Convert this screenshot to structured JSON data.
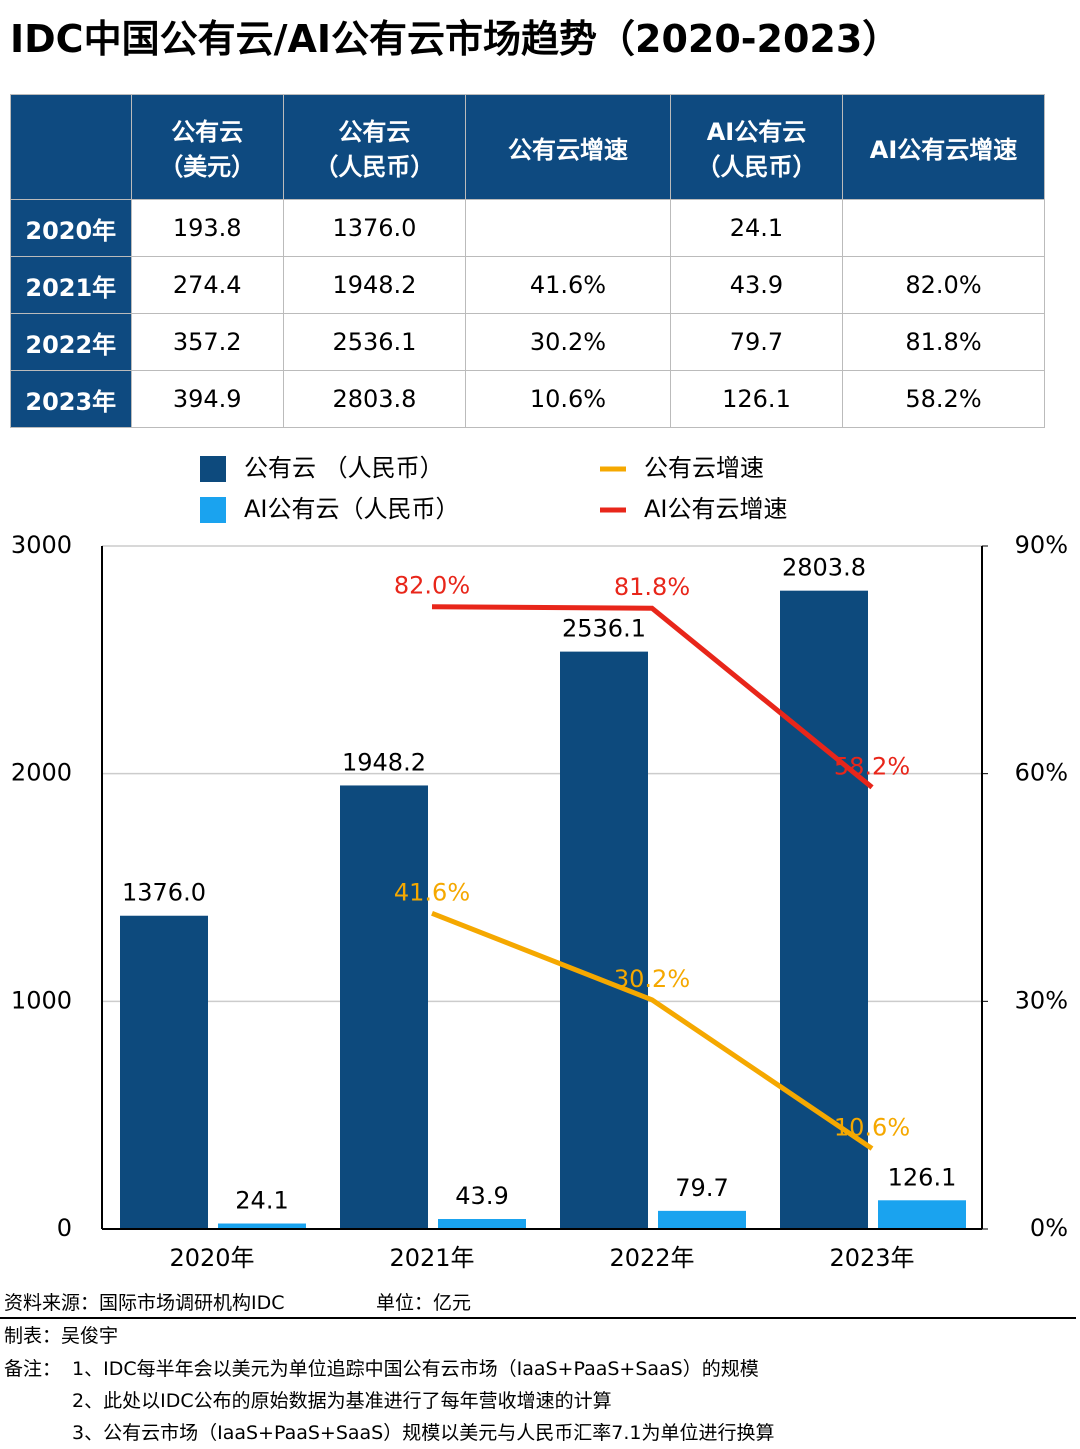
{
  "title": "IDC中国公有云/AI公有云市场趋势（2020-2023）",
  "table": {
    "header": [
      "公有云\n（美元）",
      "公有云\n（人民币）",
      "公有云增速",
      "AI公有云\n（人民币）",
      "AI公有云增速"
    ],
    "rows": [
      {
        "label": "2020年",
        "cells": [
          "193.8",
          "1376.0",
          null,
          "24.1",
          null
        ]
      },
      {
        "label": "2021年",
        "cells": [
          "274.4",
          "1948.2",
          "41.6%",
          "43.9",
          "82.0%"
        ]
      },
      {
        "label": "2022年",
        "cells": [
          "357.2",
          "2536.1",
          "30.2%",
          "79.7",
          "81.8%"
        ]
      },
      {
        "label": "2023年",
        "cells": [
          "394.9",
          "2803.8",
          "10.6%",
          "126.1",
          "58.2%"
        ]
      }
    ]
  },
  "chart_data": {
    "type": "bar",
    "categories": [
      "2020年",
      "2021年",
      "2022年",
      "2023年"
    ],
    "series": [
      {
        "name": "公有云 （人民币）",
        "type": "bar",
        "color": "#0d4a7d",
        "values": [
          1376.0,
          1948.2,
          2536.1,
          2803.8
        ],
        "value_labels": [
          "1376.0",
          "1948.2",
          "2536.1",
          "2803.8"
        ]
      },
      {
        "name": "AI公有云（人民币）",
        "type": "bar",
        "color": "#1aa3ef",
        "values": [
          24.1,
          43.9,
          79.7,
          126.1
        ],
        "value_labels": [
          "24.1",
          "43.9",
          "79.7",
          "126.1"
        ]
      },
      {
        "name": "公有云增速",
        "type": "line",
        "axis": "y2",
        "color": "#f5a800",
        "values": [
          null,
          41.6,
          30.2,
          10.6
        ],
        "value_labels": [
          null,
          "41.6%",
          "30.2%",
          "10.6%"
        ]
      },
      {
        "name": "AI公有云增速",
        "type": "line",
        "axis": "y2",
        "color": "#e8261a",
        "values": [
          null,
          82.0,
          81.8,
          58.2
        ],
        "value_labels": [
          null,
          "82.0%",
          "81.8%",
          "58.2%"
        ]
      }
    ],
    "ylim": [
      0,
      3000
    ],
    "yticks": [
      0,
      1000,
      2000,
      3000
    ],
    "y2lim": [
      0,
      90
    ],
    "y2ticks": [
      {
        "value": 0,
        "label": "0%"
      },
      {
        "value": 30,
        "label": "30%"
      },
      {
        "value": 60,
        "label": "60%"
      },
      {
        "value": 90,
        "label": "90%"
      }
    ],
    "grid": true
  },
  "footer": {
    "source": "资料来源：国际市场调研机构IDC",
    "unit": "单位：亿元",
    "author": "制表：吴俊宇",
    "note_label": "备注：",
    "notes": [
      "1、IDC每半年会以美元为单位追踪中国公有云市场（IaaS+PaaS+SaaS）的规模",
      "2、此处以IDC公布的原始数据为基准进行了每年营收增速的计算",
      "3、公有云市场（IaaS+PaaS+SaaS）规模以美元与人民币汇率7.1为单位进行换算"
    ]
  }
}
